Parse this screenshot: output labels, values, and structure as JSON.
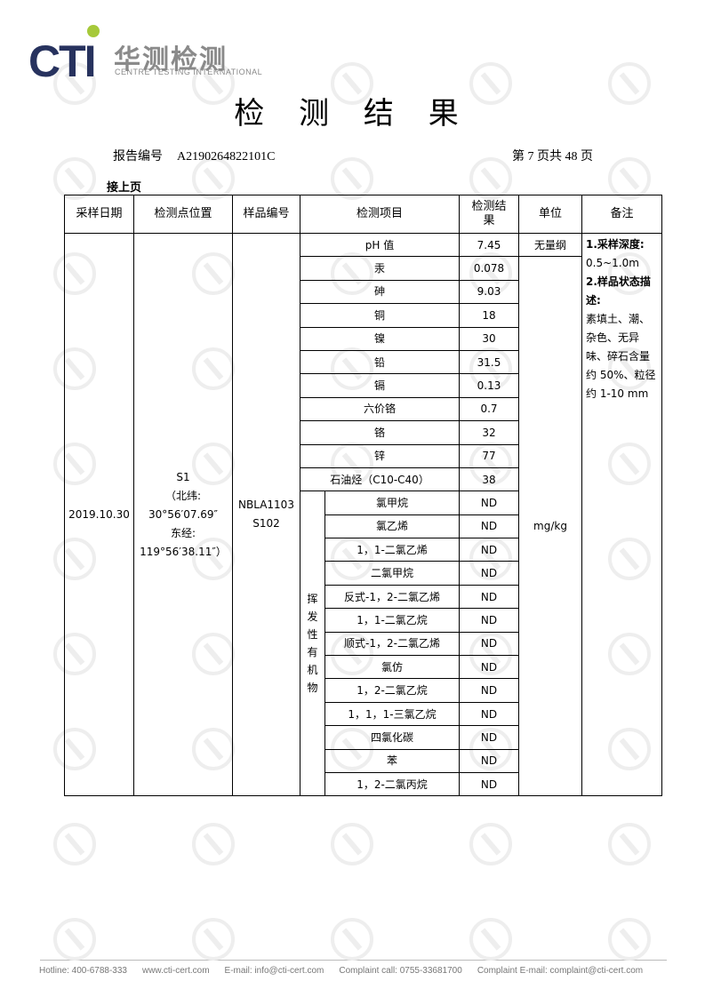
{
  "header": {
    "logo_text": "CTI",
    "logo_cn": "华测检测",
    "logo_en": "CENTRE TESTING INTERNATIONAL",
    "brand_color": "#27325e",
    "accent_color": "#a6c93a"
  },
  "title": "检 测 结 果",
  "report": {
    "label": "报告编号",
    "number": "A2190264822101C",
    "page": "第 7 页共 48 页"
  },
  "continued": "接上页",
  "table": {
    "headers": [
      "采样日期",
      "检测点位置",
      "样品编号",
      "检测项目",
      "检测结果",
      "单位",
      "备注"
    ],
    "date": "2019.10.30",
    "location": [
      "S1",
      "（北纬:",
      "30°56′07.69″",
      "东经:",
      "119°56′38.11″）"
    ],
    "sample_id": [
      "NBLA1103",
      "S102"
    ],
    "units": [
      "无量纲",
      "mg/kg"
    ],
    "voc_group": "挥发性有机物",
    "notes": {
      "h1": "1.采样深度:",
      "v1": "0.5~1.0m",
      "h2": "2.样品状态描述:",
      "v2": "素填土、潮、杂色、无异味、碎石含量约 50%、粒径约 1-10 mm"
    },
    "rows": [
      {
        "item": "pH 值",
        "result": "7.45"
      },
      {
        "item": "汞",
        "result": "0.078"
      },
      {
        "item": "砷",
        "result": "9.03"
      },
      {
        "item": "铜",
        "result": "18"
      },
      {
        "item": "镍",
        "result": "30"
      },
      {
        "item": "铅",
        "result": "31.5"
      },
      {
        "item": "镉",
        "result": "0.13"
      },
      {
        "item": "六价铬",
        "result": "0.7"
      },
      {
        "item": "铬",
        "result": "32"
      },
      {
        "item": "锌",
        "result": "77"
      },
      {
        "item": "石油烃（C10-C40）",
        "result": "38"
      }
    ],
    "voc_rows": [
      {
        "item": "氯甲烷",
        "result": "ND"
      },
      {
        "item": "氯乙烯",
        "result": "ND"
      },
      {
        "item": "1，1-二氯乙烯",
        "result": "ND"
      },
      {
        "item": "二氯甲烷",
        "result": "ND"
      },
      {
        "item": "反式-1，2-二氯乙烯",
        "result": "ND"
      },
      {
        "item": "1，1-二氯乙烷",
        "result": "ND"
      },
      {
        "item": "顺式-1，2-二氯乙烯",
        "result": "ND"
      },
      {
        "item": "氯仿",
        "result": "ND"
      },
      {
        "item": "1，2-二氯乙烷",
        "result": "ND"
      },
      {
        "item": "1，1，1-三氯乙烷",
        "result": "ND"
      },
      {
        "item": "四氯化碳",
        "result": "ND"
      },
      {
        "item": "苯",
        "result": "ND"
      },
      {
        "item": "1，2-二氯丙烷",
        "result": "ND"
      }
    ]
  },
  "footer": [
    "Hotline: 400-6788-333",
    "www.cti-cert.com",
    "E-mail: info@cti-cert.com",
    "Complaint call: 0755-33681700",
    "Complaint E-mail: complaint@cti-cert.com"
  ]
}
